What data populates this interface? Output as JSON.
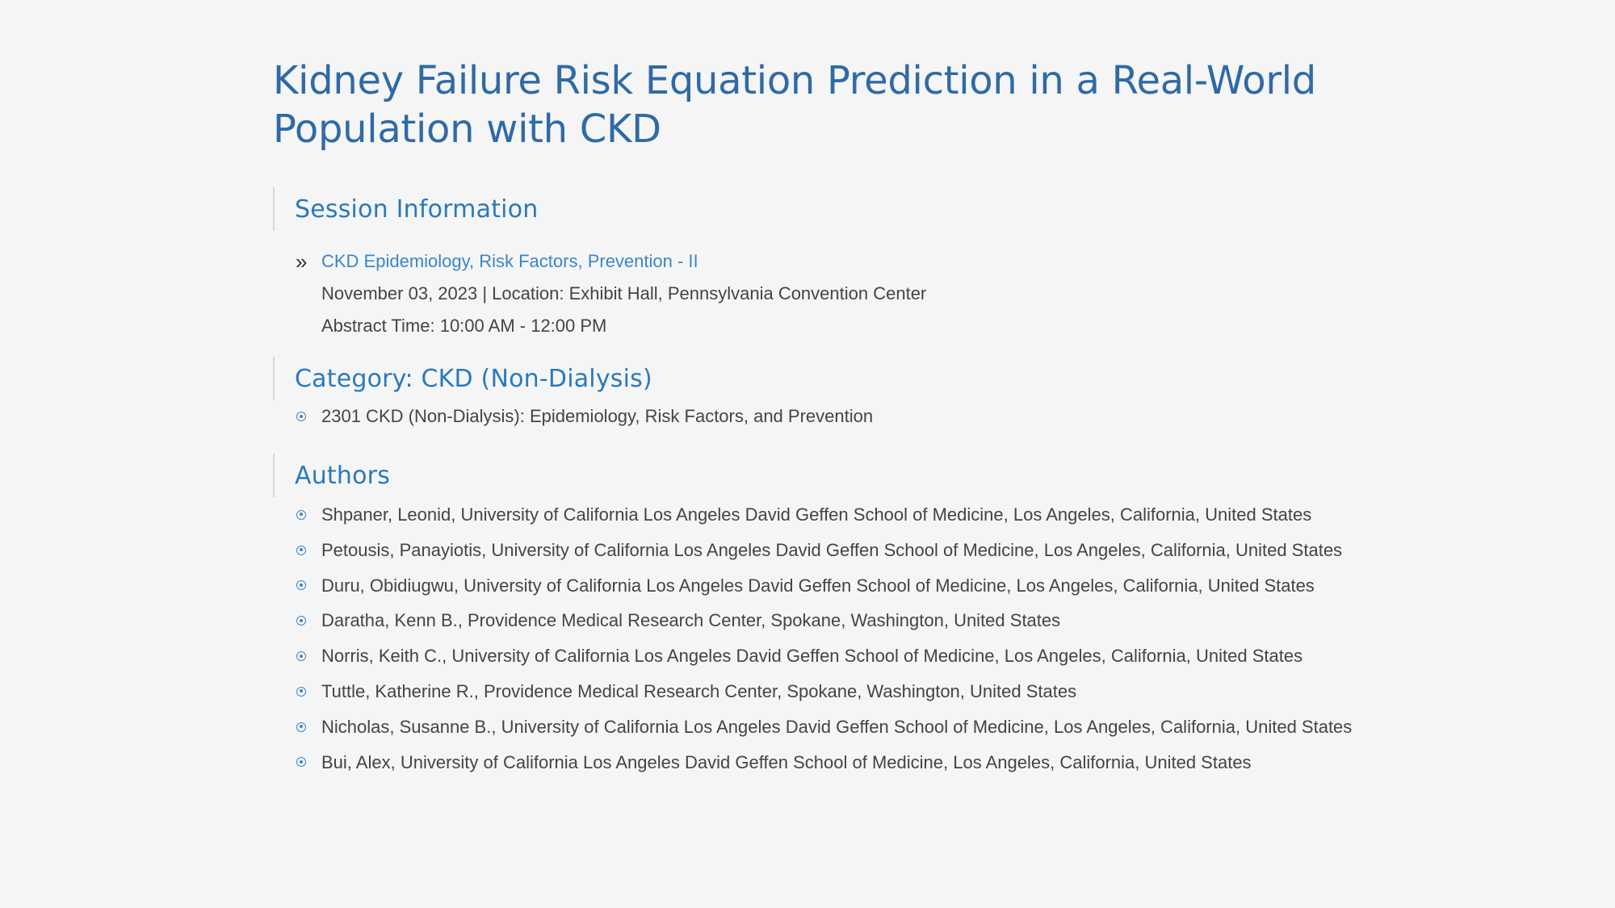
{
  "title": "Kidney Failure Risk Equation Prediction in a Real-World Population with CKD",
  "session": {
    "heading": "Session Information",
    "link_text": "CKD Epidemiology, Risk Factors, Prevention - II",
    "date_location": "November 03, 2023 | Location: Exhibit Hall, Pennsylvania Convention Center",
    "abstract_time": "Abstract Time: 10:00 AM - 12:00 PM",
    "bullet_icon": "double-chevron-right-icon"
  },
  "category": {
    "heading": "Category: CKD (Non-Dialysis)",
    "items": [
      "2301 CKD (Non-Dialysis): Epidemiology, Risk Factors, and Prevention"
    ]
  },
  "authors": {
    "heading": "Authors",
    "items": [
      "Shpaner, Leonid, University of California Los Angeles David Geffen School of Medicine, Los Angeles, California, United States",
      "Petousis, Panayiotis, University of California Los Angeles David Geffen School of Medicine, Los Angeles, California, United States",
      "Duru, Obidiugwu, University of California Los Angeles David Geffen School of Medicine, Los Angeles, California, United States",
      "Daratha, Kenn B., Providence Medical Research Center, Spokane, Washington, United States",
      "Norris, Keith C., University of California Los Angeles David Geffen School of Medicine, Los Angeles, California, United States",
      "Tuttle, Katherine R., Providence Medical Research Center, Spokane, Washington, United States",
      "Nicholas, Susanne B., University of California Los Angeles David Geffen School of Medicine, Los Angeles, California, United States",
      "Bui, Alex, University of California Los Angeles David Geffen School of Medicine, Los Angeles, California, United States"
    ]
  },
  "colors": {
    "title": "#2f6aa6",
    "heading": "#2a79bd",
    "link": "#3a86c8",
    "body_text": "#444444",
    "background": "#f5f5f5"
  }
}
